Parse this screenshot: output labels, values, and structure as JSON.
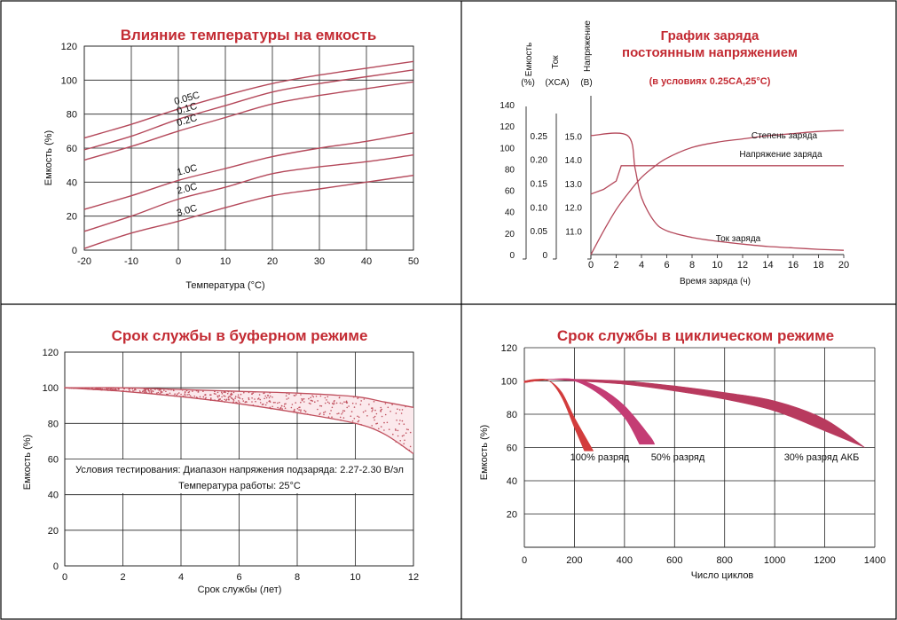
{
  "chart_data": [
    {
      "type": "line",
      "title": "Влияние температуры на емкость",
      "xlabel": "Температура (°C)",
      "ylabel": "Емкость (%)",
      "xlim": [
        -20,
        50
      ],
      "ylim": [
        0,
        120
      ],
      "xticks": [
        "-20",
        "-10",
        "0",
        "10",
        "20",
        "30",
        "40",
        "50"
      ],
      "yticks": [
        "0",
        "20",
        "40",
        "60",
        "80",
        "100",
        "120"
      ],
      "grid": true,
      "series": [
        {
          "name": "0.05C",
          "x": [
            -20,
            -10,
            0,
            10,
            20,
            30,
            40,
            50
          ],
          "y": [
            66,
            74,
            83,
            91,
            98,
            103,
            107,
            111
          ]
        },
        {
          "name": "0.1C",
          "x": [
            -20,
            -10,
            0,
            10,
            20,
            30,
            40,
            50
          ],
          "y": [
            59,
            67,
            77,
            85,
            93,
            98,
            102,
            106
          ]
        },
        {
          "name": "0.2C",
          "x": [
            -20,
            -10,
            0,
            10,
            20,
            30,
            40,
            50
          ],
          "y": [
            53,
            61,
            70,
            78,
            86,
            91,
            95,
            99
          ]
        },
        {
          "name": "1.0C",
          "x": [
            -20,
            -10,
            0,
            10,
            20,
            30,
            40,
            50
          ],
          "y": [
            24,
            32,
            41,
            48,
            55,
            60,
            64,
            69
          ]
        },
        {
          "name": "2.0C",
          "x": [
            -20,
            -10,
            0,
            10,
            20,
            30,
            40,
            50
          ],
          "y": [
            11,
            20,
            30,
            37,
            45,
            49,
            52,
            56
          ]
        },
        {
          "name": "3.0C",
          "x": [
            -20,
            -10,
            0,
            10,
            20,
            30,
            40,
            50
          ],
          "y": [
            1,
            10,
            17,
            25,
            32,
            36,
            40,
            44
          ]
        }
      ],
      "color": "#b4485a"
    },
    {
      "type": "line",
      "title_lines": [
        "График заряда",
        "постоянным напряжением"
      ],
      "subtitle": "(в условиях 0.25CA,25°C)",
      "xlabel": "Время заряда (ч)",
      "xlim": [
        0,
        20
      ],
      "xticks": [
        "0",
        "2",
        "4",
        "6",
        "8",
        "10",
        "12",
        "14",
        "16",
        "18",
        "20"
      ],
      "axis_headers": [
        {
          "top": "Емкость",
          "bottom": "(%)"
        },
        {
          "top": "Ток",
          "bottom": "(XCA)"
        },
        {
          "top": "Напряжение",
          "bottom": "(B)"
        }
      ],
      "axis_capacity": {
        "range": [
          0,
          140
        ],
        "ticks": [
          "0",
          "20",
          "40",
          "60",
          "80",
          "100",
          "120",
          "140"
        ]
      },
      "axis_current": {
        "range": [
          0,
          0.3
        ],
        "ticks": [
          "0",
          "0.05",
          "0.10",
          "0.15",
          "0.20",
          "0.25"
        ]
      },
      "axis_voltage": {
        "range": [
          10,
          15.5
        ],
        "ticks": [
          "11.0",
          "12.0",
          "13.0",
          "14.0",
          "15.0"
        ]
      },
      "series": [
        {
          "name": "Степень заряда",
          "axis": "capacity",
          "x": [
            0,
            1,
            2,
            3,
            4,
            5,
            6,
            8,
            10,
            12,
            14,
            16,
            18,
            20
          ],
          "y": [
            0,
            22,
            42,
            58,
            72,
            82,
            90,
            100,
            105,
            108,
            111,
            113,
            115,
            116
          ]
        },
        {
          "name": "Напряжение заряда",
          "axis": "voltage",
          "x": [
            0,
            1,
            2,
            2.4,
            2.8,
            3,
            20
          ],
          "y": [
            12.55,
            12.75,
            13.1,
            13.75,
            13.75,
            13.75,
            13.75
          ]
        },
        {
          "name": "Ток заряда",
          "axis": "current",
          "x": [
            0,
            2.9,
            3.5,
            4,
            5,
            6,
            8,
            10,
            12,
            14,
            16,
            18,
            20
          ],
          "y": [
            0.25,
            0.25,
            0.18,
            0.12,
            0.07,
            0.05,
            0.036,
            0.028,
            0.022,
            0.017,
            0.014,
            0.011,
            0.009
          ]
        }
      ],
      "color": "#b4485a"
    },
    {
      "type": "area",
      "title": "Срок службы в буферном режиме",
      "xlabel": "Срок службы (лет)",
      "ylabel": "Емкость (%)",
      "xlim": [
        0,
        12
      ],
      "ylim": [
        0,
        120
      ],
      "xticks": [
        "0",
        "2",
        "4",
        "6",
        "8",
        "10",
        "12"
      ],
      "yticks": [
        "0",
        "20",
        "40",
        "60",
        "80",
        "100",
        "120"
      ],
      "grid": true,
      "upper": {
        "x": [
          0,
          2,
          4,
          6,
          8,
          10,
          11,
          12
        ],
        "y": [
          100,
          100,
          99,
          98,
          97,
          95,
          92,
          89
        ]
      },
      "lower": {
        "x": [
          0,
          2,
          4,
          6,
          8,
          10,
          11,
          12
        ],
        "y": [
          100,
          98,
          95,
          91,
          86,
          80,
          74,
          63
        ]
      },
      "annotation_lines": [
        "Условия тестирования: Диапазон напряжения подзаряда: 2.27-2.30 В/эл",
        "Температура работы: 25°C"
      ],
      "color": "#c0505e"
    },
    {
      "type": "area",
      "title": "Срок службы в циклическом режиме",
      "xlabel": "Число циклов",
      "ylabel": "Емкость (%)",
      "xlim": [
        0,
        1400
      ],
      "ylim": [
        0,
        120
      ],
      "xticks": [
        "0",
        "200",
        "400",
        "600",
        "800",
        "1000",
        "1200",
        "1400"
      ],
      "yticks": [
        "20",
        "40",
        "60",
        "80",
        "100",
        "120"
      ],
      "grid": true,
      "series": [
        {
          "name": "100% разряд",
          "color": "#d23c3c",
          "upper": {
            "x": [
              0,
              50,
              100,
              150,
              200,
              240
            ],
            "y": [
              100,
              101,
              100,
              90,
              72,
              58
            ]
          },
          "lower": {
            "x": [
              0,
              50,
              100,
              150,
              200,
              260,
              275
            ],
            "y": [
              99,
              100,
              100,
              93,
              78,
              62,
              58
            ]
          }
        },
        {
          "name": "50% разряд",
          "color": "#c43c74",
          "upper": {
            "x": [
              0,
              100,
              200,
              300,
              400,
              460
            ],
            "y": [
              100,
              101,
              100,
              92,
              78,
              62
            ]
          },
          "lower": {
            "x": [
              0,
              100,
              200,
              300,
              400,
              500,
              520
            ],
            "y": [
              99,
              101,
              101,
              96,
              85,
              67,
              62
            ]
          }
        },
        {
          "name": "30% разряд АКБ",
          "color": "#b83a5e",
          "upper": {
            "x": [
              0,
              100,
              200,
              400,
              600,
              800,
              1000,
              1200,
              1360
            ],
            "y": [
              100,
              101,
              100,
              98,
              94,
              89,
              82,
              70,
              60
            ]
          },
          "lower": {
            "x": [
              0,
              100,
              200,
              400,
              600,
              800,
              1000,
              1200,
              1360
            ],
            "y": [
              100,
              101,
              101,
              100,
              97,
              93,
              88,
              77,
              60
            ]
          }
        }
      ]
    }
  ]
}
